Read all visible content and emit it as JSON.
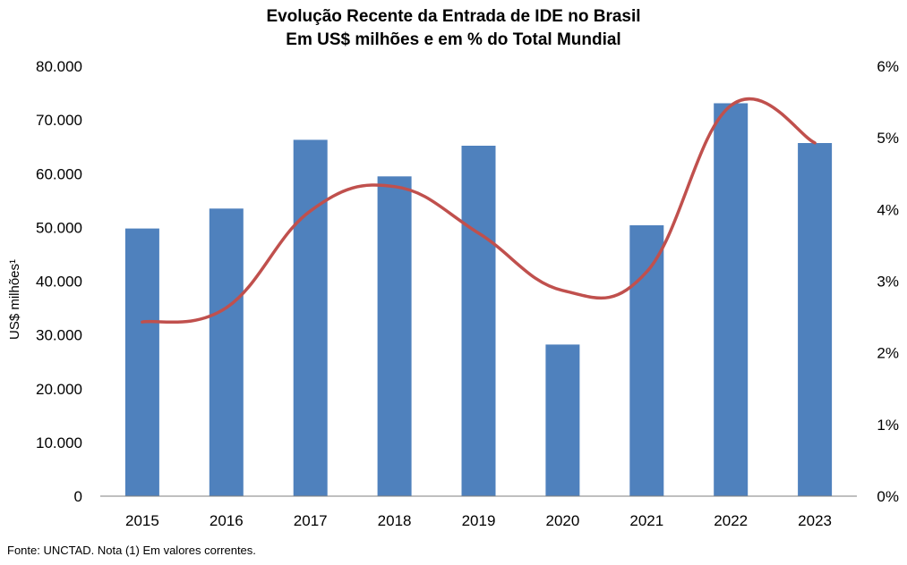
{
  "title": {
    "line1": "Evolução Recente da Entrada de IDE no Brasil",
    "line2": "Em US$ milhões e em % do Total Mundial"
  },
  "footnote": "Fonte: UNCTAD. Nota (1) Em valores correntes.",
  "colors": {
    "bars": "#4f81bd",
    "line": "#c0504d",
    "axis": "#7f7f7f"
  },
  "chart_data": {
    "type": "bar",
    "categories": [
      "2015",
      "2016",
      "2017",
      "2018",
      "2019",
      "2020",
      "2021",
      "2022",
      "2023"
    ],
    "series": [
      {
        "type": "bar",
        "axis": "left",
        "values": [
          49800,
          53500,
          66300,
          59500,
          65200,
          28200,
          50400,
          73100,
          65700
        ]
      },
      {
        "type": "line",
        "axis": "right",
        "smooth": true,
        "values": [
          2.43,
          2.63,
          3.98,
          4.32,
          3.67,
          2.87,
          3.13,
          5.45,
          4.93
        ]
      }
    ],
    "ylabel": "US$ milhões¹",
    "ylim": [
      0,
      80000
    ],
    "yticks": [
      "0",
      "10.000",
      "20.000",
      "30.000",
      "40.000",
      "50.000",
      "60.000",
      "70.000",
      "80.000"
    ],
    "y2lim": [
      0,
      6
    ],
    "y2ticks": [
      "0%",
      "1%",
      "2%",
      "3%",
      "4%",
      "5%",
      "6%"
    ],
    "grid": false,
    "legend": "none"
  }
}
